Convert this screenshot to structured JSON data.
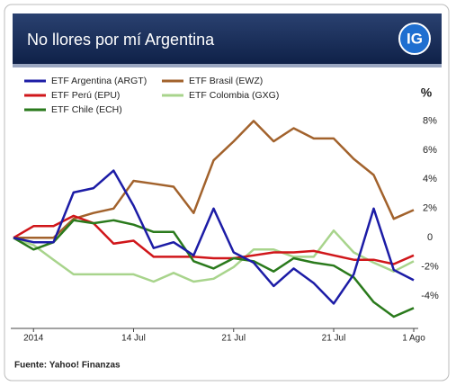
{
  "chart_data": {
    "type": "line",
    "title": "No llores por mí Argentina",
    "logo": "IG",
    "source": "Fuente: Yahoo! Finanzas",
    "y_label": "%",
    "categories": [
      null,
      "2014",
      null,
      null,
      null,
      null,
      "14 Jul",
      null,
      null,
      null,
      null,
      "21 Jul",
      null,
      null,
      null,
      null,
      "21 Jul",
      null,
      null,
      null,
      "1 Ago"
    ],
    "series": [
      {
        "name": "ETF Argentina (ARGT)",
        "color": "#1c1ca6",
        "values": [
          0,
          -0.3,
          -0.3,
          3.1,
          3.4,
          4.6,
          2.2,
          -0.7,
          -0.3,
          -1.2,
          2.0,
          -1.0,
          -1.7,
          -3.3,
          -2.1,
          -3.1,
          -4.5,
          -2.5,
          2.0,
          -2.2,
          -2.9
        ]
      },
      {
        "name": "ETF Perú (EPU)",
        "color": "#d0161a",
        "values": [
          0,
          0.8,
          0.8,
          1.5,
          1.0,
          -0.4,
          -0.2,
          -1.3,
          -1.3,
          -1.3,
          -1.4,
          -1.4,
          -1.2,
          -1.0,
          -1.0,
          -0.9,
          -1.2,
          -1.5,
          -1.5,
          -1.8,
          -1.2
        ]
      },
      {
        "name": "ETF Chile (ECH)",
        "color": "#2a7a1c",
        "values": [
          0,
          -0.8,
          -0.3,
          1.2,
          1.0,
          1.2,
          0.9,
          0.4,
          0.4,
          -1.6,
          -2.1,
          -1.4,
          -1.6,
          -2.3,
          -1.4,
          -1.7,
          -1.9,
          -2.7,
          -4.4,
          -5.4,
          -4.8
        ]
      },
      {
        "name": "ETF Brasil (EWZ)",
        "color": "#a2622c",
        "values": [
          0,
          0,
          0,
          1.3,
          1.7,
          2.0,
          3.9,
          3.7,
          3.5,
          1.7,
          5.3,
          6.6,
          8.0,
          6.6,
          7.5,
          6.8,
          6.8,
          5.4,
          4.3,
          1.3,
          1.9
        ]
      },
      {
        "name": "ETF Colombia (GXG)",
        "color": "#a8d48c",
        "values": [
          0,
          -0.5,
          -1.5,
          -2.5,
          -2.5,
          -2.5,
          -2.5,
          -3.0,
          -2.4,
          -3.0,
          -2.8,
          -2.0,
          -0.8,
          -0.8,
          -1.3,
          -1.3,
          0.5,
          -1.0,
          -1.7,
          -2.3,
          -1.6
        ]
      }
    ],
    "ylim": [
      -6.2,
      9.5
    ],
    "yticks": [
      {
        "value": 8,
        "label": "8%"
      },
      {
        "value": 6,
        "label": "6%"
      },
      {
        "value": 4,
        "label": "4%"
      },
      {
        "value": 2,
        "label": "2%"
      },
      0,
      {
        "value": -2,
        "label": "-2%"
      },
      {
        "value": -4,
        "label": "-4%"
      }
    ]
  }
}
